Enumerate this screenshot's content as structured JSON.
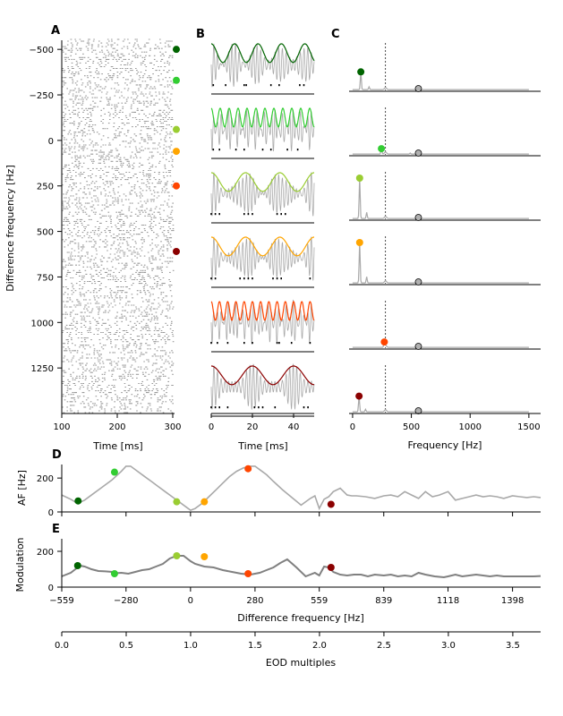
{
  "figure": {
    "panels": [
      {
        "letter": "A"
      },
      {
        "letter": "B"
      },
      {
        "letter": "C"
      },
      {
        "letter": "D"
      },
      {
        "letter": "E"
      }
    ]
  },
  "colors": {
    "trace": "#a9a9a9",
    "trace_dark": "#808080",
    "dots": [
      "#006400",
      "#32cd32",
      "#9acd32",
      "#ffa500",
      "#ff4500",
      "#8b0000"
    ],
    "eod_marker": "#b0b0b0"
  },
  "chart_data": [
    {
      "panel": "A",
      "type": "scatter",
      "xlabel": "Time [ms]",
      "ylabel": "Difference frequency [Hz]",
      "xlim": [
        100,
        300
      ],
      "ylim": [
        -550,
        1500
      ],
      "y_inverted": true,
      "xticks": [
        100,
        200,
        300
      ],
      "yticks": [
        -500,
        -250,
        0,
        250,
        500,
        750,
        1000,
        1250
      ],
      "raster_rows_df_range": [
        -550,
        1500
      ],
      "markers": [
        {
          "df": -500,
          "color": "#006400"
        },
        {
          "df": -330,
          "color": "#32cd32"
        },
        {
          "df": -60,
          "color": "#9acd32"
        },
        {
          "df": 60,
          "color": "#ffa500"
        },
        {
          "df": 250,
          "color": "#ff4500"
        },
        {
          "df": 610,
          "color": "#8b0000"
        }
      ]
    },
    {
      "panel": "B",
      "type": "line",
      "xlabel": "Time [ms]",
      "xlim": [
        0,
        50
      ],
      "xticks": [
        0,
        20,
        40
      ],
      "rows": [
        {
          "color": "#006400",
          "beat_hz": 88,
          "af_hz": 70,
          "spikes_ms": [
            1,
            7,
            16,
            17,
            29,
            33,
            43,
            45
          ]
        },
        {
          "color": "#32cd32",
          "beat_hz": 230,
          "af_hz": 230,
          "spikes_ms": [
            1,
            4,
            12,
            16,
            25,
            29,
            37,
            42
          ]
        },
        {
          "color": "#9acd32",
          "beat_hz": 60,
          "af_hz": 60,
          "spikes_ms": [
            0,
            2,
            4,
            16,
            18,
            20,
            32,
            34,
            36
          ]
        },
        {
          "color": "#ffa500",
          "beat_hz": 60,
          "af_hz": 60,
          "spikes_ms": [
            0,
            2,
            14,
            16,
            18,
            20,
            30,
            32,
            34,
            48
          ]
        },
        {
          "color": "#ff4500",
          "beat_hz": 250,
          "af_hz": 250,
          "spikes_ms": [
            0,
            3,
            8,
            16,
            20,
            32,
            33,
            39,
            48
          ]
        },
        {
          "color": "#8b0000",
          "beat_hz": 50,
          "af_hz": 50,
          "spikes_ms": [
            0,
            2,
            4,
            8,
            21,
            23,
            25,
            31,
            45,
            47
          ]
        }
      ]
    },
    {
      "panel": "C",
      "type": "line",
      "xlabel": "Frequency [Hz]",
      "xlim": [
        -30,
        1600
      ],
      "xticks": [
        0,
        500,
        1000,
        1500
      ],
      "eod_line_hz": 280,
      "rows": [
        {
          "color": "#006400",
          "peak_hz": 70,
          "peak_rel": 0.45,
          "eod_hz": 560
        },
        {
          "color": "#32cd32",
          "peak_hz": 245,
          "peak_rel": 0.15,
          "eod_hz": 560
        },
        {
          "color": "#9acd32",
          "peak_hz": 60,
          "peak_rel": 1.0,
          "eod_hz": 560
        },
        {
          "color": "#ffa500",
          "peak_hz": 60,
          "peak_rel": 1.0,
          "eod_hz": 560
        },
        {
          "color": "#ff4500",
          "peak_hz": 270,
          "peak_rel": 0.15,
          "eod_hz": 560
        },
        {
          "color": "#8b0000",
          "peak_hz": 55,
          "peak_rel": 0.4,
          "eod_hz": 560
        }
      ]
    },
    {
      "panel": "D",
      "type": "line",
      "ylabel": "AF [Hz]",
      "xlim": [
        -559,
        1520
      ],
      "ylim": [
        0,
        280
      ],
      "yticks": [
        0,
        200
      ],
      "series": [
        {
          "x": [
            -559,
            -520,
            -490,
            -460,
            -420,
            -380,
            -340,
            -300,
            -280,
            -260,
            -230,
            -200,
            -170,
            -140,
            -110,
            -80,
            -50,
            -20,
            0,
            20,
            50,
            80,
            110,
            140,
            170,
            200,
            230,
            260,
            280,
            300,
            330,
            360,
            400,
            440,
            480,
            520,
            540,
            559,
            580,
            600,
            620,
            650,
            680,
            700,
            720,
            760,
            800,
            839,
            870,
            900,
            930,
            960,
            990,
            1020,
            1050,
            1080,
            1118,
            1150,
            1180,
            1210,
            1240,
            1270,
            1300,
            1330,
            1360,
            1398,
            1430,
            1460,
            1490,
            1520
          ],
          "y": [
            100,
            75,
            50,
            70,
            110,
            150,
            190,
            240,
            270,
            270,
            240,
            210,
            180,
            150,
            120,
            90,
            60,
            30,
            10,
            20,
            50,
            90,
            130,
            170,
            210,
            240,
            260,
            270,
            270,
            250,
            220,
            180,
            130,
            85,
            40,
            80,
            95,
            20,
            75,
            90,
            120,
            140,
            100,
            95,
            95,
            90,
            80,
            95,
            100,
            90,
            120,
            100,
            80,
            120,
            90,
            100,
            120,
            70,
            80,
            90,
            100,
            90,
            95,
            90,
            80,
            95,
            90,
            85,
            90,
            85
          ]
        }
      ],
      "markers": [
        {
          "x": -488,
          "y": 65,
          "color": "#006400"
        },
        {
          "x": -330,
          "y": 235,
          "color": "#32cd32"
        },
        {
          "x": -60,
          "y": 60,
          "color": "#9acd32"
        },
        {
          "x": 60,
          "y": 60,
          "color": "#ffa500"
        },
        {
          "x": 250,
          "y": 255,
          "color": "#ff4500"
        },
        {
          "x": 610,
          "y": 45,
          "color": "#8b0000"
        }
      ]
    },
    {
      "panel": "E",
      "type": "line",
      "xlabel": "Difference frequency [Hz]",
      "ylabel": "Modulation",
      "xlim": [
        -559,
        1520
      ],
      "ylim": [
        0,
        270
      ],
      "yticks": [
        0,
        200
      ],
      "xticks": [
        -559,
        -280,
        0,
        280,
        559,
        839,
        1118,
        1398
      ],
      "series": [
        {
          "x": [
            -559,
            -540,
            -520,
            -500,
            -480,
            -460,
            -430,
            -400,
            -370,
            -340,
            -320,
            -300,
            -270,
            -240,
            -210,
            -180,
            -150,
            -120,
            -90,
            -60,
            -30,
            0,
            20,
            60,
            100,
            140,
            180,
            220,
            260,
            300,
            330,
            360,
            390,
            420,
            460,
            500,
            540,
            559,
            580,
            600,
            620,
            650,
            680,
            710,
            740,
            770,
            800,
            839,
            870,
            900,
            930,
            960,
            990,
            1020,
            1060,
            1100,
            1118,
            1150,
            1180,
            1210,
            1240,
            1270,
            1300,
            1330,
            1360,
            1398,
            1430,
            1460,
            1490,
            1520
          ],
          "y": [
            60,
            70,
            80,
            100,
            120,
            115,
            100,
            90,
            88,
            85,
            78,
            80,
            75,
            85,
            95,
            100,
            115,
            130,
            160,
            175,
            175,
            145,
            130,
            115,
            110,
            95,
            85,
            75,
            70,
            80,
            95,
            110,
            135,
            155,
            110,
            60,
            80,
            65,
            115,
            110,
            85,
            70,
            65,
            70,
            70,
            60,
            70,
            65,
            70,
            60,
            65,
            60,
            80,
            70,
            60,
            55,
            60,
            70,
            60,
            65,
            70,
            65,
            60,
            65,
            60,
            60,
            60,
            60,
            60,
            62
          ]
        }
      ],
      "markers": [
        {
          "x": -490,
          "y": 120,
          "color": "#006400"
        },
        {
          "x": -330,
          "y": 75,
          "color": "#32cd32"
        },
        {
          "x": -60,
          "y": 175,
          "color": "#9acd32"
        },
        {
          "x": 60,
          "y": 170,
          "color": "#ffa500"
        },
        {
          "x": 250,
          "y": 75,
          "color": "#ff4500"
        },
        {
          "x": 610,
          "y": 110,
          "color": "#8b0000"
        }
      ]
    },
    {
      "panel": "EOD",
      "type": "axis",
      "xlabel": "EOD multiples",
      "xlim": [
        0,
        3.716
      ],
      "xticks": [
        0.0,
        0.5,
        1.0,
        1.5,
        2.0,
        2.5,
        3.0,
        3.5
      ],
      "xticklabels": [
        "0.0",
        "0.5",
        "1.0",
        "1.5",
        "2.0",
        "2.5",
        "3.0",
        "3.5"
      ]
    }
  ]
}
